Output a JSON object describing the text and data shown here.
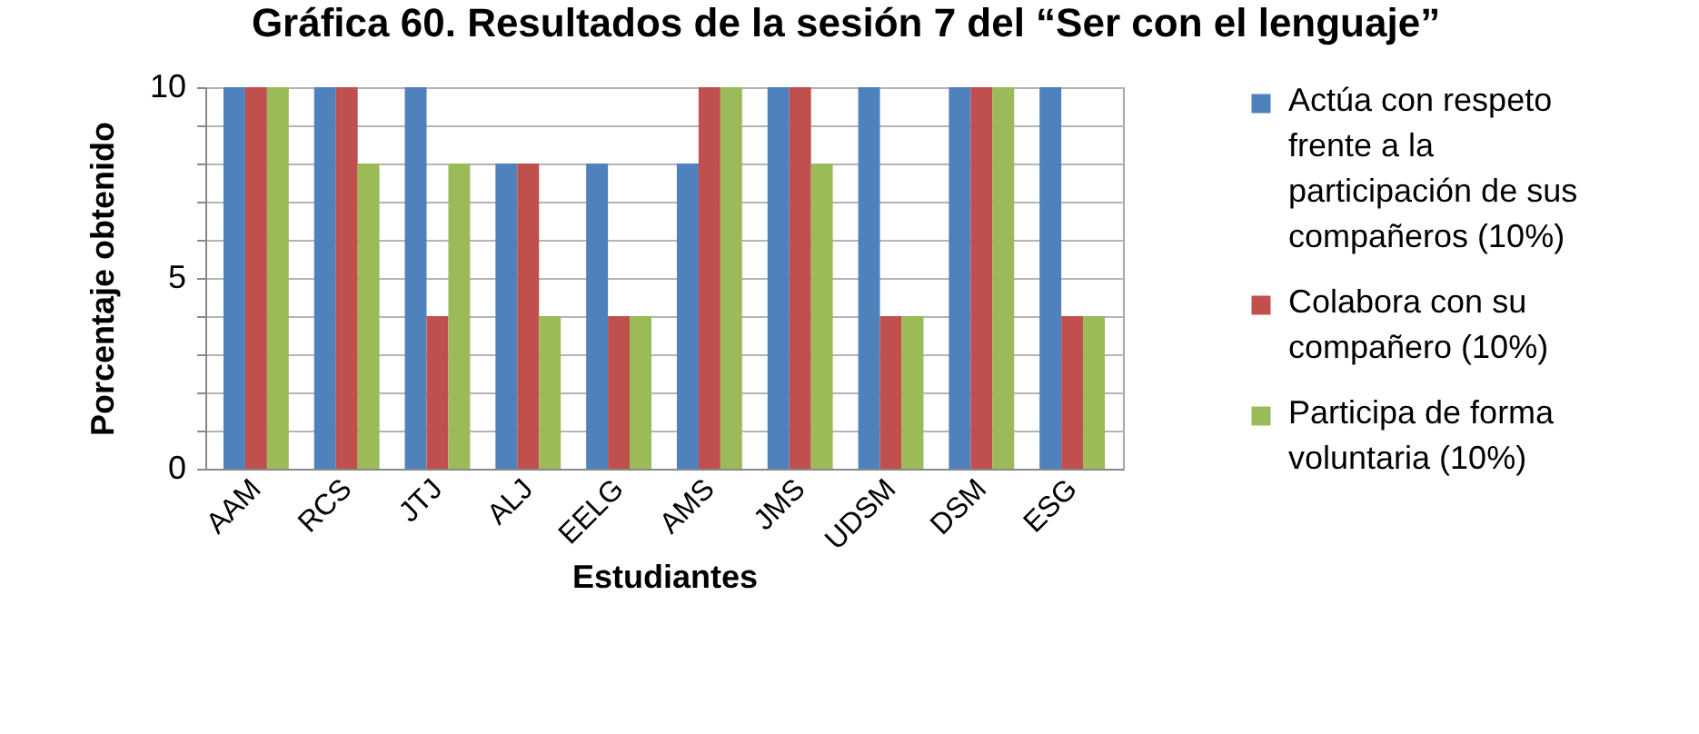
{
  "chart_data": {
    "type": "bar",
    "title": "Gráfica 60. Resultados de la sesión 7 del “Ser con el lenguaje”",
    "xlabel": "Estudiantes",
    "ylabel": "Porcentaje obtenido",
    "categories": [
      "AAM",
      "RCS",
      "JTJ",
      "ALJ",
      "EELG",
      "AMS",
      "JMS",
      "UDSM",
      "DSM",
      "ESG"
    ],
    "series": [
      {
        "name": "Actúa con respeto frente a la participación de sus compañeros (10%)",
        "color": "#4f81bd",
        "values": [
          10,
          10,
          10,
          8,
          8,
          8,
          10,
          10,
          10,
          10
        ]
      },
      {
        "name": "Colabora con su compañero (10%)",
        "color": "#c0504d",
        "values": [
          10,
          10,
          4,
          8,
          4,
          10,
          10,
          4,
          10,
          4
        ]
      },
      {
        "name": "Participa de forma voluntaria (10%)",
        "color": "#9bbb59",
        "values": [
          10,
          8,
          8,
          4,
          4,
          10,
          8,
          4,
          10,
          4
        ]
      }
    ],
    "ylim": [
      0,
      10
    ],
    "yticks": [
      0,
      {
        "value": 1,
        "label": null
      },
      {
        "value": 2,
        "label": null
      },
      {
        "value": 3,
        "label": null
      },
      {
        "value": 4,
        "label": null
      },
      5,
      {
        "value": 6,
        "label": null
      },
      {
        "value": 7,
        "label": null
      },
      {
        "value": 8,
        "label": null
      },
      {
        "value": 9,
        "label": null
      },
      10
    ],
    "grid": "y",
    "legend": "right"
  }
}
